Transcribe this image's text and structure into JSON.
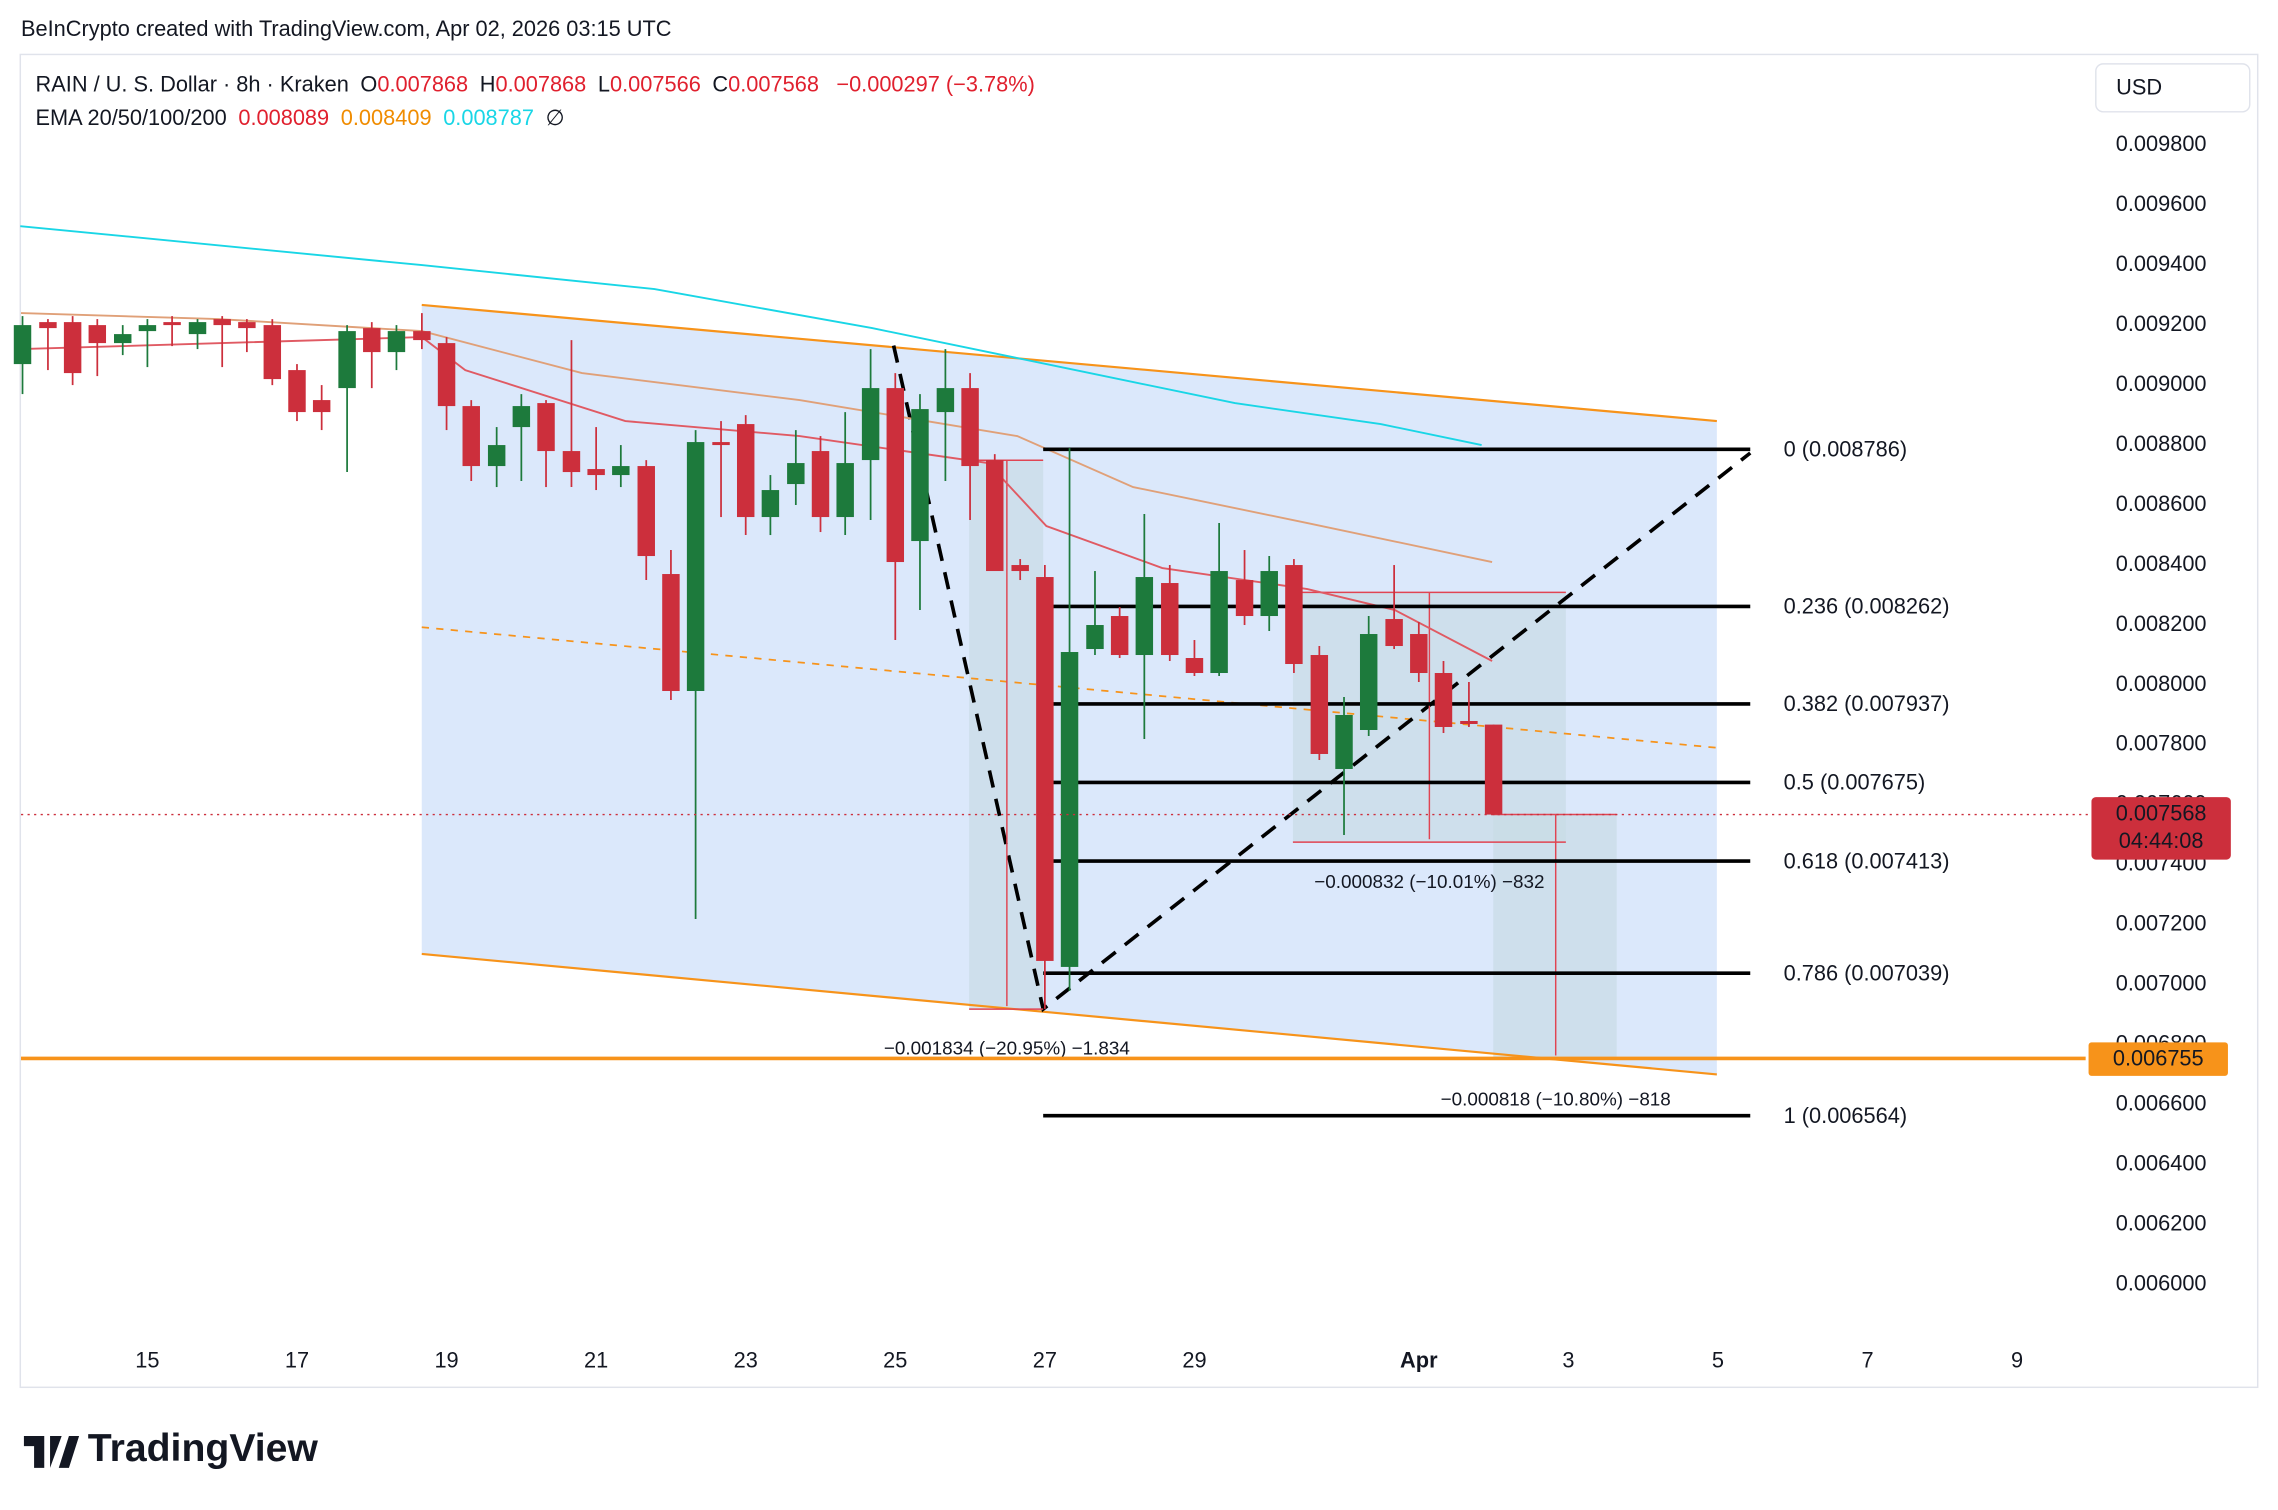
{
  "chart_data": {
    "type": "candlestick",
    "credit": "BeInCrypto created with TradingView.com, Apr 02, 2026 03:15 UTC",
    "legend": {
      "symbol": "RAIN / U. S. Dollar · 8h · Kraken",
      "ohlc_labels": [
        "O",
        "H",
        "L",
        "C"
      ],
      "ohlc": [
        0.007868,
        0.007868,
        0.007566,
        0.007568
      ],
      "change": "−0.000297 (−3.78%)",
      "ema_label": "EMA 20/50/100/200",
      "ema_values": [
        0.008089,
        0.008409,
        0.008787
      ],
      "ema_colors": [
        "#e0202e",
        "#f08c00",
        "#19d6e6"
      ],
      "ema_mark": "∅"
    },
    "currency": "USD",
    "brand": "TradingView",
    "up_color": "#1d7a3c",
    "down_color": "#cc2f3c",
    "x": [
      13.33,
      13.67,
      14,
      14.33,
      14.67,
      15,
      15.33,
      15.67,
      16,
      16.33,
      16.67,
      17,
      17.33,
      17.67,
      18,
      18.33,
      18.67,
      19,
      19.33,
      19.67,
      20,
      20.33,
      20.67,
      21,
      21.33,
      21.67,
      22,
      22.33,
      22.67,
      23,
      23.33,
      23.67,
      24,
      24.33,
      24.67,
      25,
      25.33,
      25.67,
      26,
      26.33,
      26.67,
      27,
      27.33,
      27.67,
      28,
      28.33,
      28.67,
      29,
      29.33,
      29.67,
      30,
      30.33,
      30.67,
      31,
      31.33,
      31.67,
      32,
      32.33,
      32.67,
      33
    ],
    "open": [
      0.00907,
      0.00921,
      0.00921,
      0.0092,
      0.00914,
      0.00918,
      0.00921,
      0.00917,
      0.00922,
      0.00921,
      0.0092,
      0.00905,
      0.00895,
      0.00899,
      0.00919,
      0.00911,
      0.00918,
      0.00914,
      0.00893,
      0.00873,
      0.00886,
      0.00894,
      0.00878,
      0.00872,
      0.0087,
      0.00873,
      0.00837,
      0.00798,
      0.00881,
      0.00887,
      0.00856,
      0.00867,
      0.00878,
      0.00856,
      0.00875,
      0.00899,
      0.00848,
      0.00891,
      0.00899,
      0.00875,
      0.0084,
      0.00836,
      0.00706,
      0.00812,
      0.00823,
      0.0081,
      0.00834,
      0.00809,
      0.00804,
      0.00835,
      0.00823,
      0.0084,
      0.0081,
      0.00772,
      0.00785,
      0.00822,
      0.00817,
      0.00804,
      0.00788,
      0.007868
    ],
    "high": [
      0.00923,
      0.00922,
      0.00923,
      0.00922,
      0.0092,
      0.00922,
      0.00923,
      0.00922,
      0.00923,
      0.00922,
      0.00922,
      0.00907,
      0.009,
      0.0092,
      0.00921,
      0.0092,
      0.00924,
      0.00916,
      0.00895,
      0.00886,
      0.00897,
      0.00895,
      0.00915,
      0.00886,
      0.0088,
      0.00875,
      0.00845,
      0.00885,
      0.00888,
      0.0089,
      0.0087,
      0.00885,
      0.00883,
      0.00891,
      0.00912,
      0.00904,
      0.00897,
      0.00912,
      0.00904,
      0.00877,
      0.00842,
      0.0084,
      0.00879,
      0.00838,
      0.00826,
      0.00857,
      0.0084,
      0.00815,
      0.00854,
      0.00845,
      0.00843,
      0.00842,
      0.00813,
      0.00796,
      0.00823,
      0.0084,
      0.00821,
      0.00808,
      0.00801,
      0.007868
    ],
    "low": [
      0.00897,
      0.00905,
      0.009,
      0.00903,
      0.0091,
      0.00906,
      0.00913,
      0.00912,
      0.00906,
      0.00911,
      0.009,
      0.00888,
      0.00885,
      0.00871,
      0.00899,
      0.00905,
      0.00912,
      0.00885,
      0.00868,
      0.00866,
      0.00868,
      0.00866,
      0.00866,
      0.00865,
      0.00866,
      0.00835,
      0.00795,
      0.00722,
      0.00856,
      0.0085,
      0.0085,
      0.0086,
      0.00851,
      0.0085,
      0.00855,
      0.00815,
      0.00825,
      0.00868,
      0.00855,
      0.00838,
      0.00835,
      0.00692,
      0.00698,
      0.0081,
      0.00809,
      0.00782,
      0.00808,
      0.00803,
      0.00803,
      0.0082,
      0.00818,
      0.00804,
      0.00775,
      0.0075,
      0.00783,
      0.00812,
      0.00801,
      0.00784,
      0.00786,
      0.007566
    ],
    "close": [
      0.0092,
      0.00919,
      0.00904,
      0.00914,
      0.00917,
      0.0092,
      0.0092,
      0.00921,
      0.0092,
      0.00919,
      0.00902,
      0.00891,
      0.00891,
      0.00918,
      0.00911,
      0.00918,
      0.00915,
      0.00893,
      0.00873,
      0.0088,
      0.00893,
      0.00878,
      0.00871,
      0.0087,
      0.00873,
      0.00843,
      0.00798,
      0.00881,
      0.0088,
      0.00856,
      0.00865,
      0.00874,
      0.00856,
      0.00874,
      0.00899,
      0.00841,
      0.00892,
      0.00899,
      0.00873,
      0.00838,
      0.00838,
      0.00708,
      0.00811,
      0.0082,
      0.0081,
      0.00836,
      0.0081,
      0.00804,
      0.00838,
      0.00823,
      0.00838,
      0.00807,
      0.00777,
      0.0079,
      0.00817,
      0.00813,
      0.00804,
      0.00786,
      0.00787,
      0.007568
    ],
    "series": [
      {
        "color": "#19d6e6",
        "x": [
          13.3,
          18.67,
          21.78,
          24.69,
          27.02,
          29.54,
          31.49,
          32.84
        ],
        "values": [
          0.00953,
          0.0094,
          0.00932,
          0.00919,
          0.00907,
          0.00894,
          0.00887,
          0.0088
        ]
      },
      {
        "color": "#e0a078",
        "x": [
          13.31,
          15.95,
          18.67,
          20.81,
          23.72,
          26.63,
          28.18,
          30.51,
          32.98
        ],
        "values": [
          0.00924,
          0.00922,
          0.00918,
          0.00904,
          0.00895,
          0.00883,
          0.00866,
          0.00854,
          0.00841
        ]
      },
      {
        "color": "#e05a63",
        "x": [
          13.31,
          18.67,
          19.25,
          21.39,
          23.72,
          26.24,
          27.02,
          28.57,
          30.51,
          31.68,
          32.98
        ],
        "values": [
          0.00912,
          0.00916,
          0.00905,
          0.00888,
          0.00883,
          0.00874,
          0.00853,
          0.00839,
          0.00832,
          0.00825,
          0.00808
        ]
      }
    ],
    "fib_levels": [
      {
        "label": "0 (0.008786)",
        "value": 0.008786
      },
      {
        "label": "0.236 (0.008262)",
        "value": 0.008262
      },
      {
        "label": "0.382 (0.007937)",
        "value": 0.007937
      },
      {
        "label": "0.5 (0.007675)",
        "value": 0.007675
      },
      {
        "label": "0.618 (0.007413)",
        "value": 0.007413
      },
      {
        "label": "0.786 (0.007039)",
        "value": 0.007039
      },
      {
        "label": "1 (0.006564)",
        "value": 0.006564
      }
    ],
    "measures": [
      "−0.001834 (−20.95%) −1.834",
      "−0.000832 (−10.01%) −832",
      "−0.000818 (−10.80%) −818"
    ],
    "last_price": 0.007568,
    "countdown": "04:44:08",
    "level_line": 0.006755,
    "level_color": "#f7931a",
    "xlim": [
      13.31,
      40.8
    ],
    "ylim": [
      0.005806,
      0.0101
    ],
    "xticks": [
      15,
      17,
      19,
      21,
      23,
      25,
      27,
      29,
      {
        "value": 32,
        "label": "Apr"
      },
      {
        "value": 34,
        "label": "3"
      },
      {
        "value": 36,
        "label": "5"
      },
      {
        "value": 38,
        "label": "7"
      },
      {
        "value": 40,
        "label": "9"
      }
    ],
    "yticks": [
      {
        "value": 0.0098,
        "label": "0.009800"
      },
      {
        "value": 0.0096,
        "label": "0.009600"
      },
      {
        "value": 0.0094,
        "label": "0.009400"
      },
      {
        "value": 0.0092,
        "label": "0.009200"
      },
      {
        "value": 0.009,
        "label": "0.009000"
      },
      {
        "value": 0.0088,
        "label": "0.008800"
      },
      {
        "value": 0.0086,
        "label": "0.008600"
      },
      {
        "value": 0.0084,
        "label": "0.008400"
      },
      {
        "value": 0.0082,
        "label": "0.008200"
      },
      {
        "value": 0.008,
        "label": "0.008000"
      },
      {
        "value": 0.0078,
        "label": "0.007800"
      },
      {
        "value": 0.0076,
        "label": "0.007600"
      },
      {
        "value": 0.0074,
        "label": "0.007400"
      },
      {
        "value": 0.0072,
        "label": "0.007200"
      },
      {
        "value": 0.007,
        "label": "0.007000"
      },
      {
        "value": 0.0068,
        "label": "0.006800"
      },
      {
        "value": 0.0066,
        "label": "0.006600"
      },
      {
        "value": 0.0064,
        "label": "0.006400"
      },
      {
        "value": 0.0062,
        "label": "0.006200"
      },
      {
        "value": 0.006,
        "label": "0.006000"
      }
    ]
  }
}
